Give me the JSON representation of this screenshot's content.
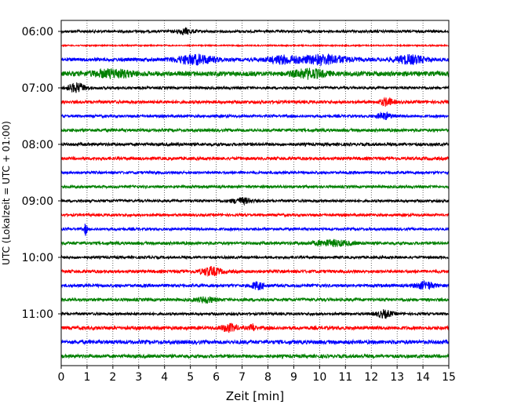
{
  "chart_data": {
    "type": "line",
    "title": "",
    "xlabel": "Zeit  [min]",
    "ylabel": "UTC (Lokalzeit = UTC + 01:00)",
    "xlim": [
      0,
      15
    ],
    "x_ticks": [
      0,
      1,
      2,
      3,
      4,
      5,
      6,
      7,
      8,
      9,
      10,
      11,
      12,
      13,
      14,
      15
    ],
    "grid": "vertical dotted",
    "y_ticks": [
      {
        "label": "06:00",
        "trace": 0
      },
      {
        "label": "07:00",
        "trace": 4
      },
      {
        "label": "08:00",
        "trace": 8
      },
      {
        "label": "09:00",
        "trace": 12
      },
      {
        "label": "10:00",
        "trace": 16
      },
      {
        "label": "11:00",
        "trace": 20
      }
    ],
    "trace_colors": [
      "#000000",
      "#ff0000",
      "#0000ff",
      "#008000"
    ],
    "traces": [
      {
        "start": "06:00",
        "color": "#000000",
        "amplitude": 0.3,
        "bursts": [
          {
            "x": 4.8,
            "w": 0.6,
            "a": 0.6
          }
        ]
      },
      {
        "start": "06:15",
        "color": "#ff0000",
        "amplitude": 0.15,
        "bursts": []
      },
      {
        "start": "06:30",
        "color": "#0000ff",
        "amplitude": 0.4,
        "bursts": [
          {
            "x": 5.2,
            "w": 1.5,
            "a": 1.0
          },
          {
            "x": 8.6,
            "w": 1.2,
            "a": 0.8
          },
          {
            "x": 10.2,
            "w": 1.8,
            "a": 1.0
          },
          {
            "x": 13.5,
            "w": 1.2,
            "a": 0.9
          }
        ]
      },
      {
        "start": "06:45",
        "color": "#008000",
        "amplitude": 0.55,
        "bursts": [
          {
            "x": 2.0,
            "w": 1.5,
            "a": 0.8
          },
          {
            "x": 9.6,
            "w": 1.2,
            "a": 0.9
          }
        ]
      },
      {
        "start": "07:00",
        "color": "#000000",
        "amplitude": 0.3,
        "bursts": [
          {
            "x": 0.6,
            "w": 0.7,
            "a": 1.0
          }
        ]
      },
      {
        "start": "07:15",
        "color": "#ff0000",
        "amplitude": 0.35,
        "bursts": [
          {
            "x": 12.6,
            "w": 0.5,
            "a": 0.8
          }
        ]
      },
      {
        "start": "07:30",
        "color": "#0000ff",
        "amplitude": 0.3,
        "bursts": [
          {
            "x": 12.5,
            "w": 0.6,
            "a": 0.7
          }
        ]
      },
      {
        "start": "07:45",
        "color": "#008000",
        "amplitude": 0.35,
        "bursts": []
      },
      {
        "start": "08:00",
        "color": "#000000",
        "amplitude": 0.35,
        "bursts": []
      },
      {
        "start": "08:15",
        "color": "#ff0000",
        "amplitude": 0.35,
        "bursts": []
      },
      {
        "start": "08:30",
        "color": "#0000ff",
        "amplitude": 0.3,
        "bursts": []
      },
      {
        "start": "08:45",
        "color": "#008000",
        "amplitude": 0.3,
        "bursts": []
      },
      {
        "start": "09:00",
        "color": "#000000",
        "amplitude": 0.3,
        "bursts": [
          {
            "x": 7.0,
            "w": 0.8,
            "a": 0.6
          }
        ]
      },
      {
        "start": "09:15",
        "color": "#ff0000",
        "amplitude": 0.3,
        "bursts": []
      },
      {
        "start": "09:30",
        "color": "#0000ff",
        "amplitude": 0.3,
        "bursts": [
          {
            "x": 0.95,
            "w": 0.1,
            "a": 1.4
          }
        ]
      },
      {
        "start": "09:45",
        "color": "#008000",
        "amplitude": 0.35,
        "bursts": [
          {
            "x": 10.5,
            "w": 1.5,
            "a": 0.6
          }
        ]
      },
      {
        "start": "10:00",
        "color": "#000000",
        "amplitude": 0.3,
        "bursts": []
      },
      {
        "start": "10:15",
        "color": "#ff0000",
        "amplitude": 0.35,
        "bursts": [
          {
            "x": 5.8,
            "w": 0.8,
            "a": 0.9
          }
        ]
      },
      {
        "start": "10:30",
        "color": "#0000ff",
        "amplitude": 0.35,
        "bursts": [
          {
            "x": 7.6,
            "w": 0.5,
            "a": 0.8
          },
          {
            "x": 14.1,
            "w": 0.7,
            "a": 0.8
          }
        ]
      },
      {
        "start": "10:45",
        "color": "#008000",
        "amplitude": 0.35,
        "bursts": [
          {
            "x": 5.6,
            "w": 0.7,
            "a": 0.6
          }
        ]
      },
      {
        "start": "11:00",
        "color": "#000000",
        "amplitude": 0.3,
        "bursts": [
          {
            "x": 12.5,
            "w": 0.6,
            "a": 0.8
          }
        ]
      },
      {
        "start": "11:15",
        "color": "#ff0000",
        "amplitude": 0.4,
        "bursts": [
          {
            "x": 6.5,
            "w": 0.6,
            "a": 0.8
          },
          {
            "x": 7.4,
            "w": 0.2,
            "a": 0.8
          }
        ]
      },
      {
        "start": "11:30",
        "color": "#0000ff",
        "amplitude": 0.45,
        "bursts": []
      },
      {
        "start": "11:45",
        "color": "#008000",
        "amplitude": 0.4,
        "bursts": []
      }
    ]
  }
}
